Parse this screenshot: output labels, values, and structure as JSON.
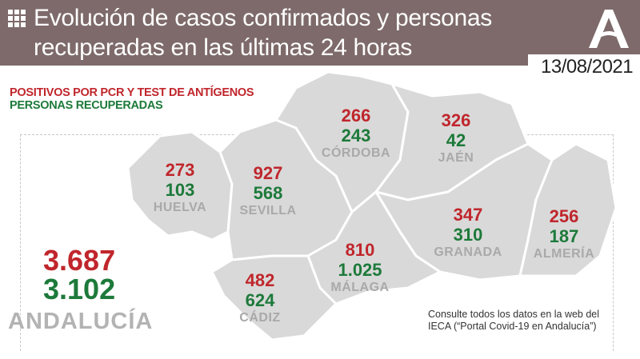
{
  "header": {
    "icon": "grid-icon",
    "title_line1": "Evolución de casos confirmados y personas",
    "title_line2": "recuperadas en las últimas 24 horas",
    "logo": "junta-andalucia-logo",
    "date": "13/08/2021",
    "background_color": "#7e6a6a"
  },
  "legend": {
    "positives_label": "POSITIVOS POR PCR Y TEST DE ANTÍGENOS",
    "recovered_label": "PERSONAS RECUPERADAS",
    "positives_color": "#c0262c",
    "recovered_color": "#1d7a3a"
  },
  "provinces": [
    {
      "name": "HUELVA",
      "positives": "273",
      "recovered": "103"
    },
    {
      "name": "SEVILLA",
      "positives": "927",
      "recovered": "568"
    },
    {
      "name": "CÓRDOBA",
      "positives": "266",
      "recovered": "243"
    },
    {
      "name": "JAÉN",
      "positives": "326",
      "recovered": "42"
    },
    {
      "name": "GRANADA",
      "positives": "347",
      "recovered": "310"
    },
    {
      "name": "ALMERÍA",
      "positives": "256",
      "recovered": "187"
    },
    {
      "name": "MÁLAGA",
      "positives": "810",
      "recovered": "1.025"
    },
    {
      "name": "CÁDIZ",
      "positives": "482",
      "recovered": "624"
    }
  ],
  "total": {
    "name": "ANDALUCÍA",
    "positives": "3.687",
    "recovered": "3.102"
  },
  "note": {
    "line1": "Consulte todos los datos en la web del",
    "line2": "IECA (“Portal Covid-19 en Andalucía”)"
  }
}
